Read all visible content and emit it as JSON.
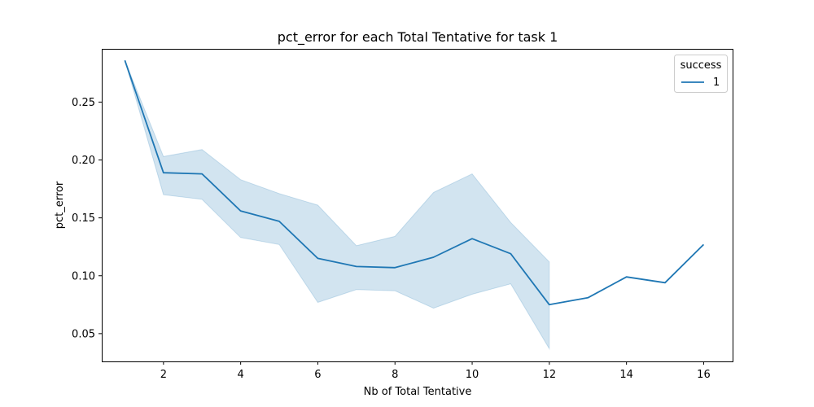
{
  "chart_data": {
    "type": "line",
    "title": "pct_error for each Total Tentative for task 1",
    "xlabel": "Nb of Total Tentative",
    "ylabel": "pct_error",
    "xlim": [
      0.4,
      16.75
    ],
    "ylim": [
      0.026,
      0.296
    ],
    "xticks": [
      2,
      4,
      6,
      8,
      10,
      12,
      14,
      16
    ],
    "yticks": [
      0.05,
      0.1,
      0.15,
      0.2,
      0.25
    ],
    "ytick_labels": [
      "0.05",
      "0.10",
      "0.15",
      "0.20",
      "0.25"
    ],
    "grid": false,
    "legend": {
      "title": "success",
      "placement": "top-right"
    },
    "series": [
      {
        "name": "1",
        "color": "#1f77b4",
        "band_color": "#1f77b4",
        "x": [
          1,
          2,
          3,
          4,
          5,
          6,
          7,
          8,
          9,
          10,
          11,
          12,
          13,
          14,
          15,
          16
        ],
        "y": [
          0.286,
          0.189,
          0.188,
          0.156,
          0.147,
          0.115,
          0.108,
          0.107,
          0.116,
          0.132,
          0.119,
          0.075,
          0.081,
          0.099,
          0.094,
          0.127
        ],
        "ci_lower": [
          0.286,
          0.17,
          0.166,
          0.133,
          0.127,
          0.077,
          0.088,
          0.087,
          0.072,
          0.084,
          0.093,
          0.037,
          null,
          null,
          null,
          null
        ],
        "ci_upper": [
          0.286,
          0.203,
          0.209,
          0.183,
          0.171,
          0.161,
          0.126,
          0.134,
          0.172,
          0.188,
          0.146,
          0.112,
          null,
          null,
          null,
          null
        ]
      }
    ]
  }
}
